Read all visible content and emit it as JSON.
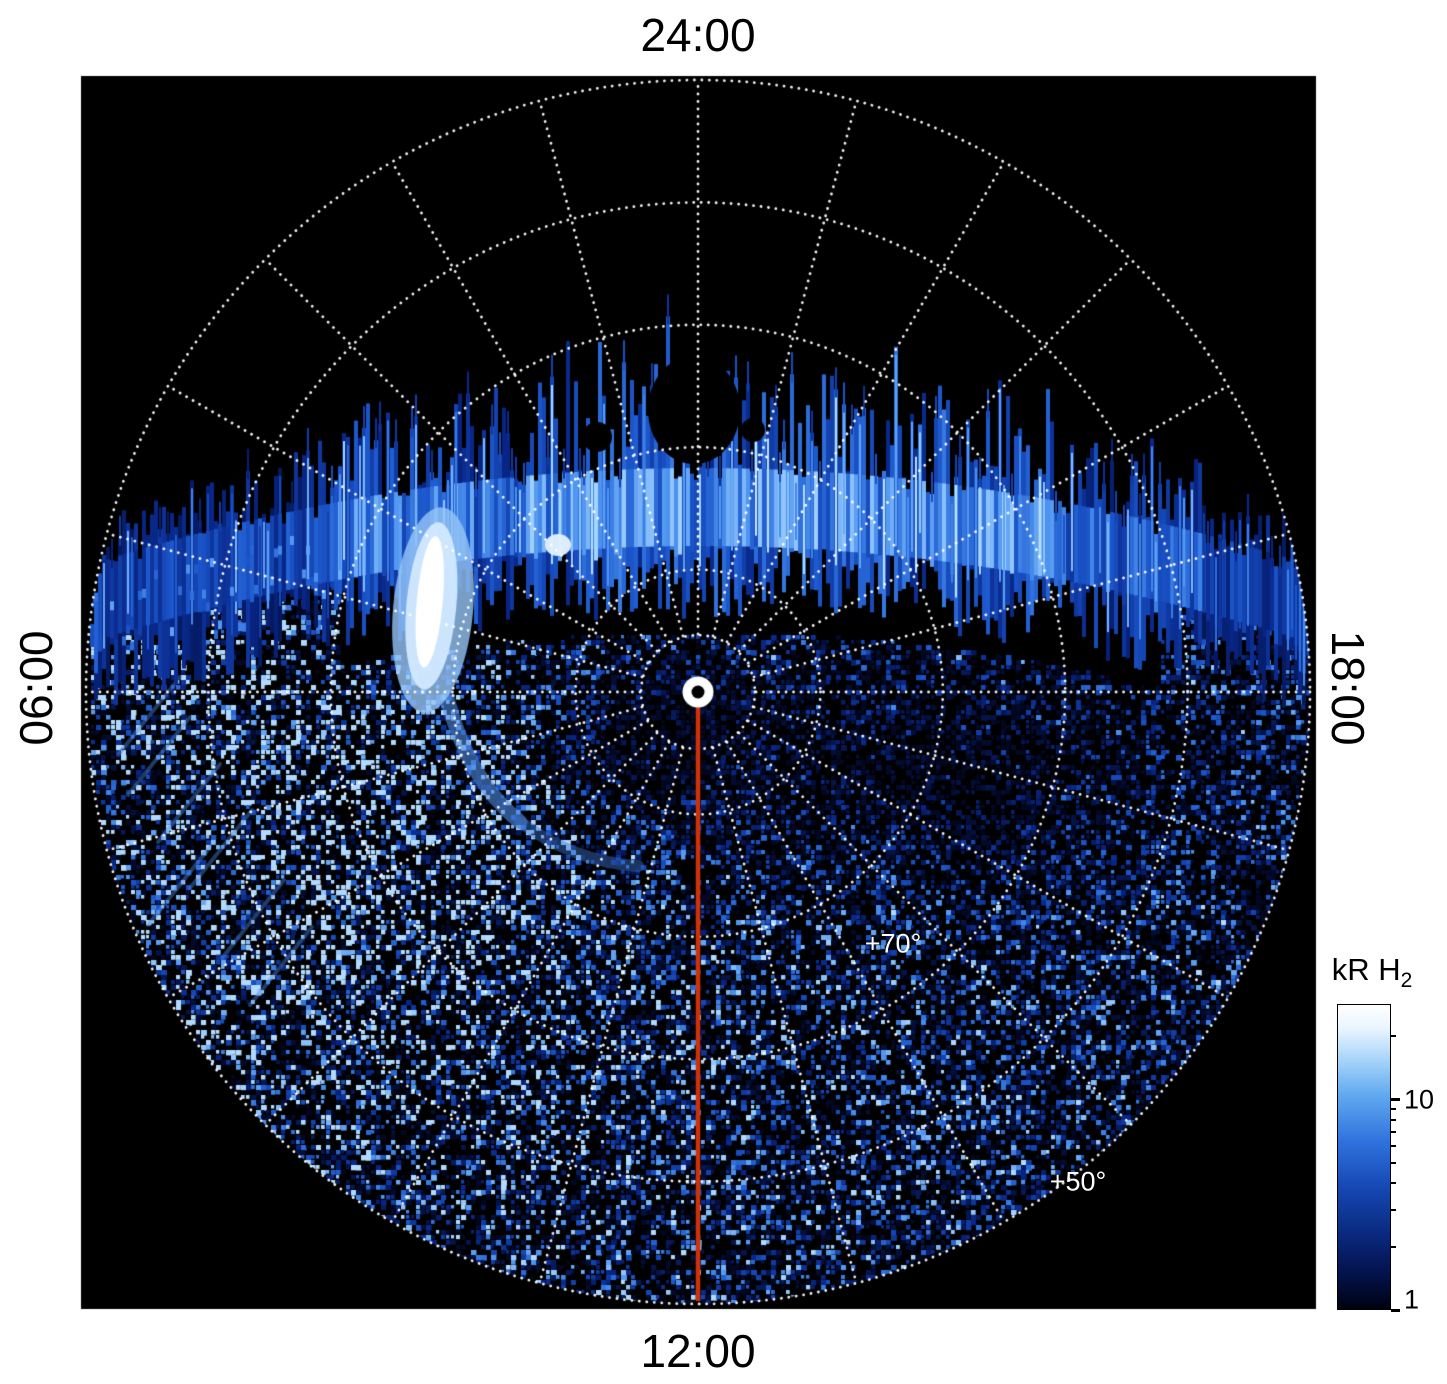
{
  "plot": {
    "time_labels": {
      "top": "24:00",
      "bottom": "12:00",
      "left": "06:00",
      "right": "18:00"
    },
    "lat_labels": [
      {
        "text": "+70°"
      },
      {
        "text": "+50°"
      }
    ],
    "colorbar": {
      "title_main": "kR H",
      "title_sub": "2",
      "major_tick_labels": [
        "10",
        "1"
      ]
    }
  },
  "chart_data": {
    "type": "heatmap",
    "projection": "polar",
    "quantity": "H2 auroral emission brightness",
    "units": "kR",
    "background_color": "#000000",
    "angular_axis": {
      "kind": "local_time",
      "labels": [
        {
          "text": "24:00",
          "position": "top"
        },
        {
          "text": "18:00",
          "position": "right"
        },
        {
          "text": "12:00",
          "position": "bottom"
        },
        {
          "text": "06:00",
          "position": "left"
        }
      ],
      "spoke_step_deg": 15
    },
    "radial_axis": {
      "kind": "latitude",
      "center_lat_deg": 90,
      "edge_lat_deg": 40,
      "grid_lat_deg": [
        80,
        70,
        60,
        50,
        40
      ],
      "labels": [
        {
          "text": "+70°",
          "lat_deg": 70
        },
        {
          "text": "+50°",
          "lat_deg": 50
        }
      ]
    },
    "colorbar": {
      "label": "kR H2",
      "scale": "log",
      "min": 1,
      "max": 28.5,
      "major_ticks": [
        10,
        1
      ],
      "minor_ticks": [
        2,
        3,
        4,
        5,
        6,
        7,
        8,
        9,
        20
      ]
    },
    "grid": {
      "style": "dotted",
      "color": "#ffffff",
      "circle_fractions": [
        0.093,
        0.2,
        0.4,
        0.6,
        0.8,
        1.0
      ],
      "n_spokes": 24
    },
    "features": {
      "main_emission_band": {
        "description": "bright ragged band of H2 emission crossing the nightside (24:00) half of the disk",
        "approx_lat_range_deg": [
          55,
          75
        ],
        "approx_peak_kR": 30
      },
      "brightest_spot": {
        "description": "intense white emission patch",
        "approx_local_time": "07:30",
        "approx_lat_deg": 62,
        "approx_kR": 30
      },
      "background_speckle": {
        "description": "faint noisy emission over the dayside (12:00) half of the disk",
        "approx_range_kR": [
          1,
          5
        ]
      },
      "noon_meridian_line": {
        "color": "#cf3208",
        "from": "pole",
        "to": "12:00 limb"
      },
      "pole_marker": {
        "description": "white ring with dark center at the pole"
      }
    }
  }
}
